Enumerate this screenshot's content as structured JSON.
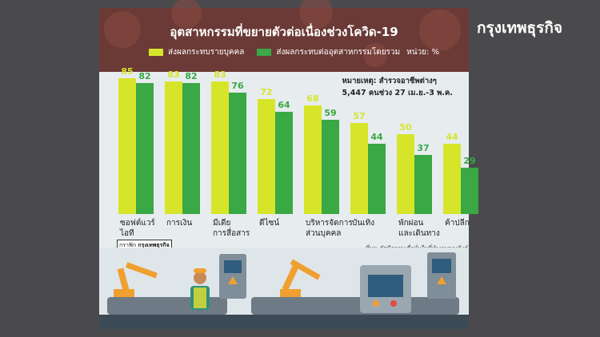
{
  "brand": "กรุงเทพธุรกิจ",
  "footer": {
    "credit_label": "กราฟิก",
    "credit_brand": "กรุงเทพธุรกิจ",
    "source": "ที่มา: ดัชนีความเชื่อมั่นในที่ทำงานของลิงค์อิน"
  },
  "note": {
    "line1": "หมายเหตุ: สำรวจอาชีพต่างๆ",
    "line2": "5,447 คนช่วง 27 เม.ย.-3 พ.ค."
  },
  "colors": {
    "series1": "#d7e52a",
    "series2": "#39a845",
    "band": "#6b3a36"
  },
  "chart_data": {
    "type": "bar",
    "title": "อุตสาหกรรมที่ขยายตัวต่อเนื่องช่วงโควิด-19",
    "unit": "หน่วย: %",
    "categories": [
      [
        "ซอฟต์แวร์",
        "ไอที"
      ],
      [
        "การเงิน"
      ],
      [
        "มีเดีย",
        "การสื่อสาร"
      ],
      [
        "ดีไซน์"
      ],
      [
        "บริหารจัดการ",
        "ส่วนบุคคล"
      ],
      [
        "บันเทิง"
      ],
      [
        "พักผ่อน",
        "และเดินทาง"
      ],
      [
        "ค้าปลีก"
      ]
    ],
    "series": [
      {
        "name": "ส่งผลกระทบรายบุคคล",
        "values": [
          85,
          83,
          83,
          72,
          68,
          57,
          50,
          44
        ]
      },
      {
        "name": "ส่งผลกระทบต่ออุตสาหกรรมโดยรวม",
        "values": [
          82,
          82,
          76,
          64,
          59,
          44,
          37,
          29
        ]
      }
    ],
    "ylim": [
      0,
      100
    ],
    "grid": false,
    "legend": "top"
  }
}
